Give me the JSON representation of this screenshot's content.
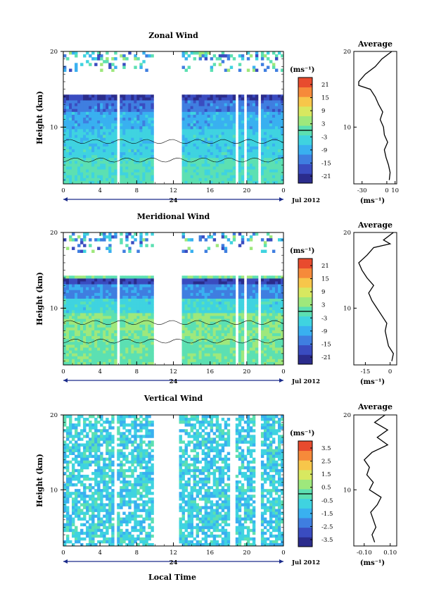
{
  "figure": {
    "xlabel": "Local Time",
    "date_label": "Jul 2012",
    "colorscale": [
      "#2b2c8c",
      "#3a4cc0",
      "#3f7ee0",
      "#39b0f0",
      "#3fd3e0",
      "#5ce0b2",
      "#9ee87c",
      "#d8e860",
      "#f7c64a",
      "#f68a3a",
      "#e84b2e"
    ]
  },
  "chart_data": [
    {
      "type": "heatmap",
      "title": "Zonal Wind",
      "ylabel": "Height (km)",
      "yticks": [
        "20",
        "10"
      ],
      "xticks": [
        "0",
        "4",
        "8",
        "12",
        "16",
        "20",
        "0"
      ],
      "day_label": "24",
      "date_label": "Jul 2012",
      "xlim": [
        0,
        24
      ],
      "ylim": [
        2.5,
        20
      ],
      "colorbar": {
        "label": "(ms⁻¹)",
        "ticks": [
          "21",
          "15",
          "9",
          "3",
          "-3",
          "-9",
          "-15",
          "-21"
        ],
        "range": [
          -24,
          24
        ]
      },
      "gaps": [
        [
          6,
          6.3
        ],
        [
          10,
          13
        ],
        [
          18.8,
          19
        ],
        [
          19.6,
          19.9
        ],
        [
          21.2,
          21.5
        ]
      ],
      "average": {
        "title": "Average",
        "xticks": [
          "-30",
          "0",
          "10"
        ],
        "xlim": [
          -40,
          12
        ],
        "yticks": [
          "20",
          "10"
        ],
        "xlabel": "(ms⁻¹)",
        "height": [
          3,
          4,
          5,
          6,
          7,
          8,
          9,
          10,
          11,
          12,
          13,
          14,
          15,
          15.5,
          16,
          17,
          18,
          19,
          20
        ],
        "value": [
          3,
          4,
          2,
          -1,
          -3,
          1,
          -3,
          -4,
          -8,
          -5,
          -10,
          -14,
          -20,
          -34,
          -34,
          -26,
          -14,
          -6,
          6
        ]
      }
    },
    {
      "type": "heatmap",
      "title": "Meridional Wind",
      "ylabel": "Height (km)",
      "yticks": [
        "20",
        "10"
      ],
      "xticks": [
        "0",
        "4",
        "8",
        "12",
        "16",
        "20",
        "0"
      ],
      "day_label": "24",
      "date_label": "Jul 2012",
      "xlim": [
        0,
        24
      ],
      "ylim": [
        2.5,
        20
      ],
      "colorbar": {
        "label": "(ms⁻¹)",
        "ticks": [
          "21",
          "15",
          "9",
          "3",
          "-3",
          "-9",
          "-15",
          "-21"
        ],
        "range": [
          -24,
          24
        ]
      },
      "gaps": [
        [
          6,
          6.3
        ],
        [
          10,
          13
        ],
        [
          18.8,
          19
        ],
        [
          19.6,
          19.9
        ],
        [
          21.2,
          21.5
        ]
      ],
      "average": {
        "title": "Average",
        "xticks": [
          "-15",
          "0"
        ],
        "xlim": [
          -22,
          4
        ],
        "yticks": [
          "20",
          "10"
        ],
        "xlabel": "(ms⁻¹)",
        "height": [
          3,
          4,
          5,
          6,
          7,
          8,
          9,
          10,
          11,
          12,
          13,
          14,
          15,
          16,
          17,
          18,
          18.5,
          19,
          20
        ],
        "value": [
          1,
          2,
          -1,
          -2,
          -3,
          -2,
          -5,
          -8,
          -11,
          -13,
          -10,
          -14,
          -17,
          -19,
          -14,
          -10,
          0,
          -4,
          2
        ]
      }
    },
    {
      "type": "heatmap",
      "title": "Vertical Wind",
      "ylabel": "Height (km)",
      "yticks": [
        "20",
        "10"
      ],
      "xticks": [
        "0",
        "4",
        "8",
        "12",
        "16",
        "20",
        "0"
      ],
      "day_label": "24",
      "date_label": "Jul 2012",
      "xlim": [
        0,
        24
      ],
      "ylim": [
        2.5,
        20
      ],
      "colorbar": {
        "label": "(ms⁻¹)",
        "ticks": [
          "3.5",
          "2.5",
          "1.5",
          "0.5",
          "-0.5",
          "-1.5",
          "-2.5",
          "-3.5"
        ],
        "range": [
          -4,
          4
        ]
      },
      "gaps": [
        [
          5.6,
          5.9
        ],
        [
          10,
          12.7
        ],
        [
          18.3,
          18.7
        ],
        [
          21,
          21.4
        ]
      ],
      "average": {
        "title": "Average",
        "xticks": [
          "-0.10",
          "0.10"
        ],
        "xlim": [
          -0.18,
          0.15
        ],
        "yticks": [
          "20",
          "10"
        ],
        "xlabel": "(ms⁻¹)",
        "height": [
          3,
          4,
          5,
          6,
          7,
          8,
          9,
          10,
          11,
          12,
          13,
          14,
          15,
          16,
          17,
          18,
          19,
          20
        ],
        "value": [
          -0.02,
          -0.04,
          -0.01,
          -0.03,
          -0.05,
          0.0,
          0.03,
          -0.06,
          -0.03,
          -0.08,
          -0.06,
          -0.1,
          -0.04,
          0.08,
          0.0,
          0.08,
          -0.02,
          0.06
        ]
      }
    }
  ]
}
